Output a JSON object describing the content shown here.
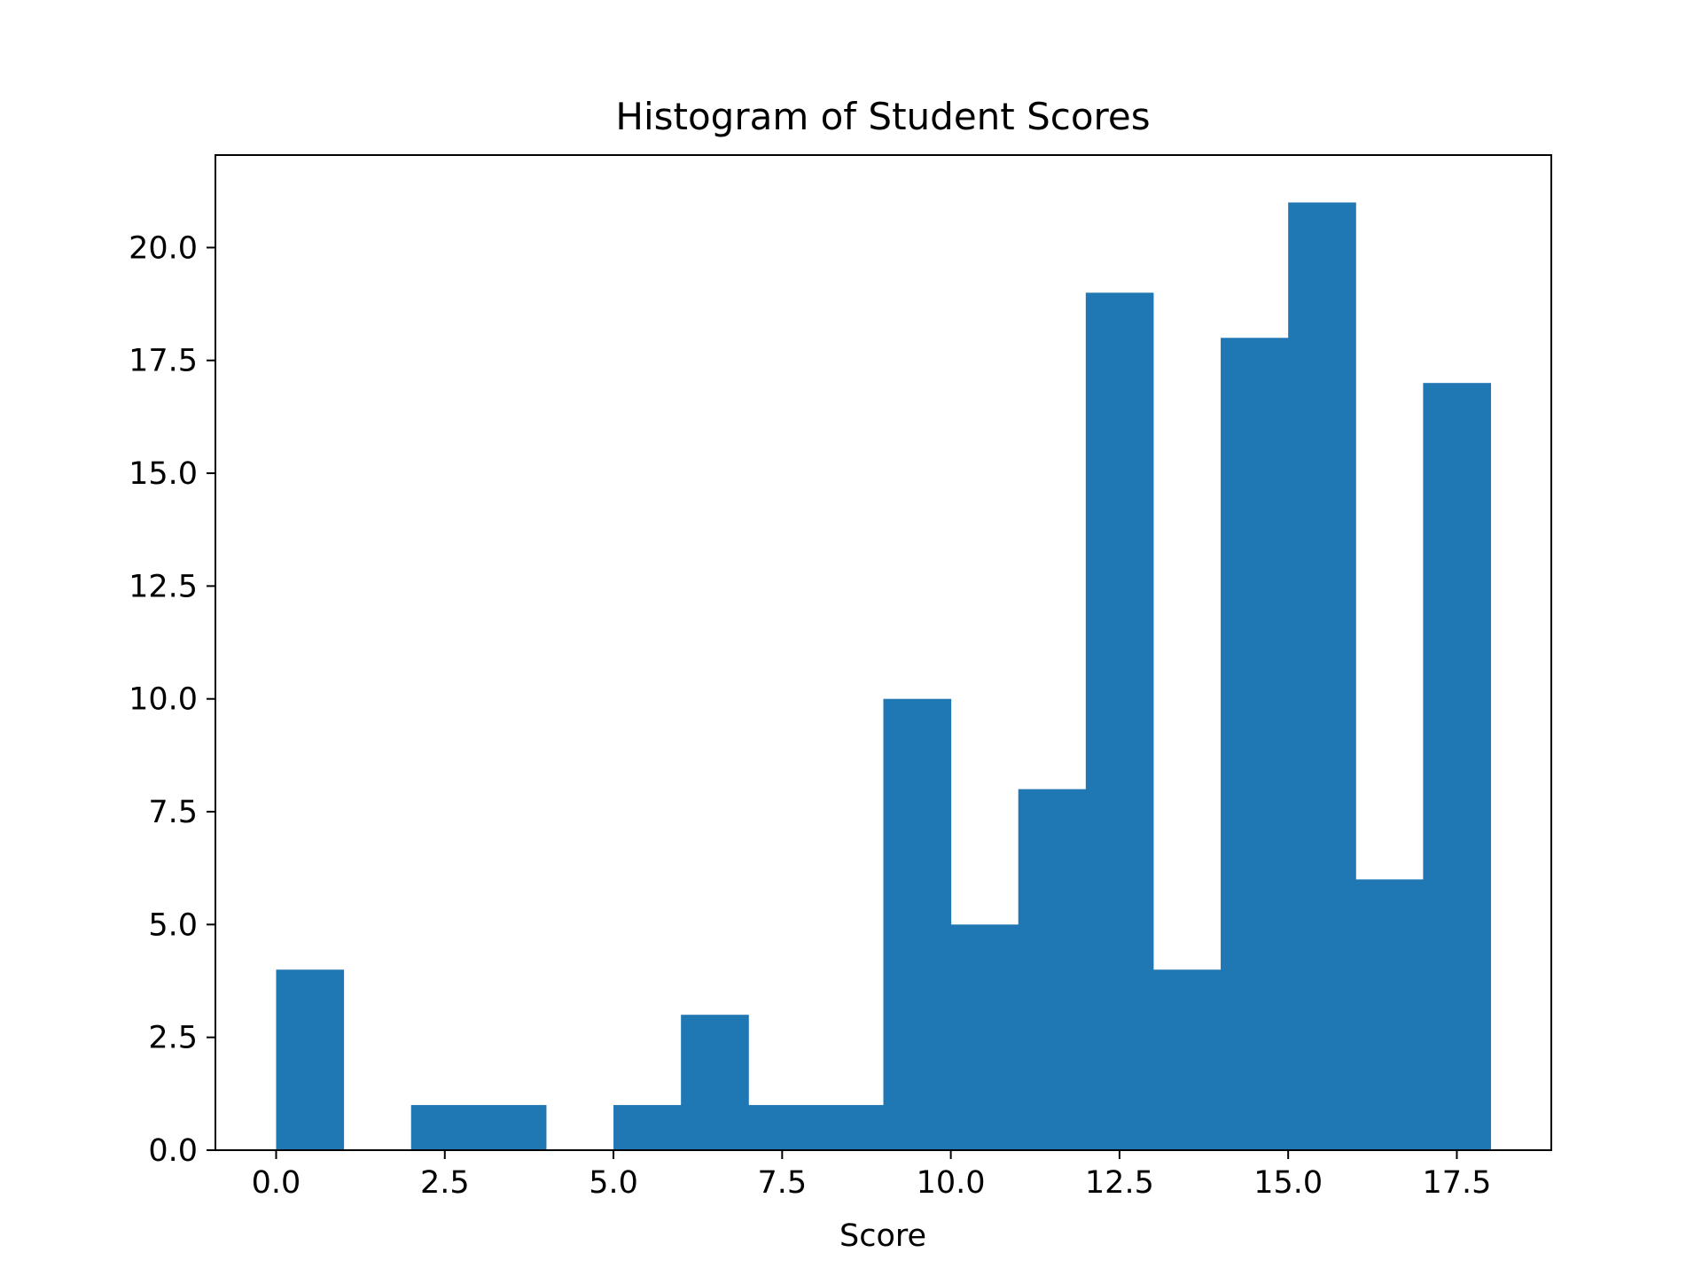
{
  "chart_data": {
    "type": "bar",
    "title": "Histogram of Student Scores",
    "xlabel": "Score",
    "ylabel": "",
    "bin_edges": [
      0,
      1,
      2,
      3,
      4,
      5,
      6,
      7,
      8,
      9,
      10,
      11,
      12,
      13,
      14,
      15,
      16,
      17,
      18
    ],
    "values": [
      4,
      0,
      1,
      1,
      0,
      1,
      3,
      1,
      1,
      10,
      5,
      8,
      19,
      4,
      18,
      21,
      6,
      17
    ],
    "xlim": [
      -0.9,
      18.9
    ],
    "ylim": [
      0,
      22.05
    ],
    "x_ticks": [
      0,
      2.5,
      5,
      7.5,
      10,
      12.5,
      15,
      17.5
    ],
    "x_tick_labels": [
      "0.0",
      "2.5",
      "5.0",
      "7.5",
      "10.0",
      "12.5",
      "15.0",
      "17.5"
    ],
    "y_ticks": [
      0,
      2.5,
      5,
      7.5,
      10,
      12.5,
      15,
      17.5,
      20
    ],
    "y_tick_labels": [
      "0.0",
      "2.5",
      "5.0",
      "7.5",
      "10.0",
      "12.5",
      "15.0",
      "17.5",
      "20.0"
    ],
    "grid": false,
    "bar_color": "#1f77b4"
  }
}
